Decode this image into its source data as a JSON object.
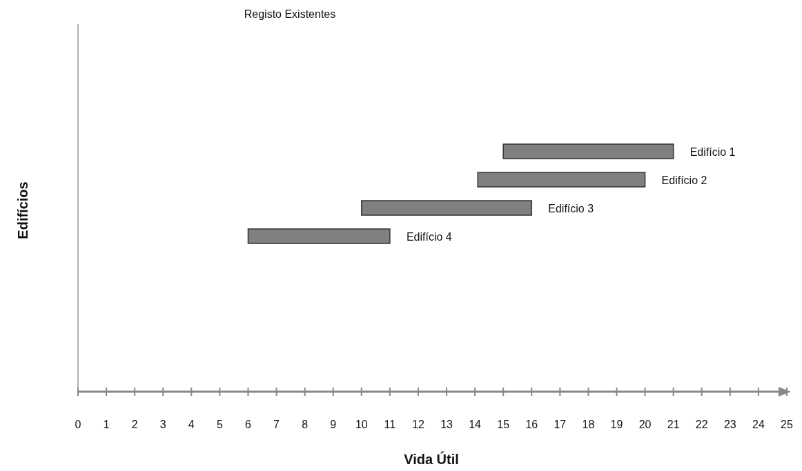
{
  "chart_data": {
    "type": "bar",
    "orientation": "horizontal",
    "title": "Registo Existentes",
    "xlabel": "Vida Útil",
    "ylabel": "Edifícios",
    "categories": [
      null,
      null,
      null,
      null,
      null,
      null,
      null,
      null,
      null,
      null,
      null,
      null,
      null
    ],
    "base": [
      null,
      null,
      null,
      null,
      15,
      14.1,
      10,
      6,
      null,
      null,
      null,
      null,
      null
    ],
    "values": [
      null,
      null,
      null,
      null,
      6,
      5.9,
      6,
      5,
      null,
      null,
      null,
      null,
      null
    ],
    "color": "#808080",
    "annotations": [
      {
        "text": "Edifício 1",
        "x": 21
      },
      {
        "text": "Edifício 2",
        "x": 20
      },
      {
        "text": "Edifício 3",
        "x": 16
      },
      {
        "text": "Edifício 4",
        "x": 11
      }
    ],
    "xlim": [
      0,
      25
    ],
    "xticks": [
      0,
      1,
      2,
      3,
      4,
      5,
      6,
      7,
      8,
      9,
      10,
      11,
      12,
      13,
      14,
      15,
      16,
      17,
      18,
      19,
      20,
      21,
      22,
      23,
      24,
      25
    ],
    "grid": false
  }
}
